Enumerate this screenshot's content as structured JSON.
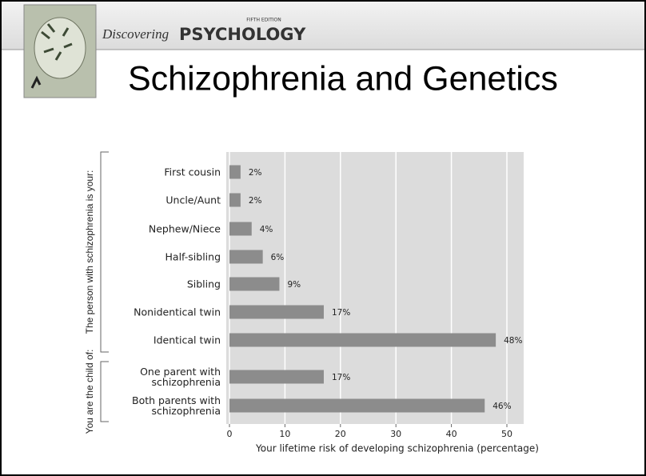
{
  "header": {
    "edition": "FIFTH EDITION",
    "brand_script": "Discovering",
    "brand": "PSYCHOLOGY"
  },
  "title": "Schizophrenia and Genetics",
  "chart_data": {
    "type": "bar",
    "orientation": "horizontal",
    "group_labels": [
      "The person with schizophrenia is your:",
      "You are the child of:"
    ],
    "categories": [
      "First cousin",
      "Uncle/Aunt",
      "Nephew/Niece",
      "Half-sibling",
      "Sibling",
      "Nonidentical twin",
      "Identical twin",
      "One parent with\nschizophrenia",
      "Both parents with\nschizophrenia"
    ],
    "values": [
      2,
      2,
      4,
      6,
      9,
      17,
      48,
      17,
      46
    ],
    "value_labels": [
      "2%",
      "2%",
      "4%",
      "6%",
      "9%",
      "17%",
      "48%",
      "17%",
      "46%"
    ],
    "color": "#8c8c8c",
    "xlabel": "Your lifetime risk of developing schizophrenia (percentage)",
    "xlim": [
      0,
      53
    ],
    "xticks": [
      0,
      10,
      20,
      30,
      40,
      50
    ],
    "grid": true
  }
}
